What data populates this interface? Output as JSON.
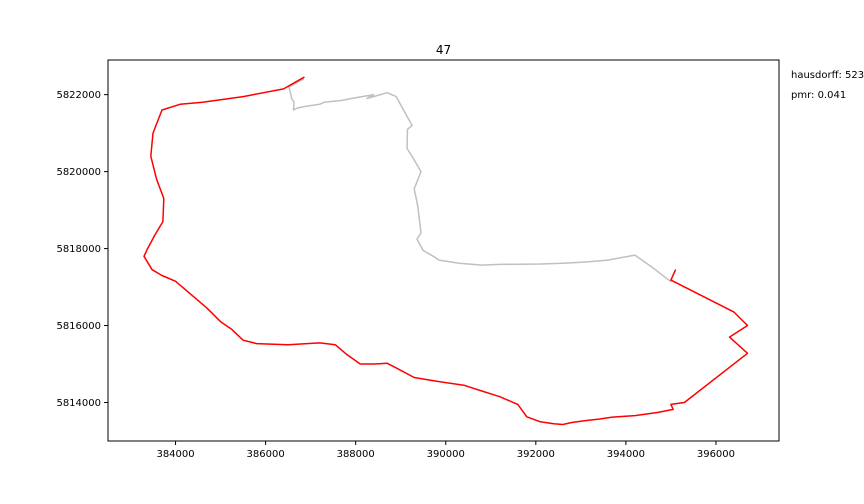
{
  "chart_data": {
    "type": "line",
    "title": "47",
    "xlabel": "",
    "ylabel": "",
    "xlim": [
      382500,
      397400
    ],
    "ylim": [
      5813000,
      5822900
    ],
    "x_ticks": [
      384000,
      386000,
      388000,
      390000,
      392000,
      394000,
      396000
    ],
    "y_ticks": [
      5814000,
      5816000,
      5818000,
      5820000,
      5822000
    ],
    "x_tick_labels": [
      "384000",
      "386000",
      "388000",
      "390000",
      "392000",
      "394000",
      "396000"
    ],
    "y_tick_labels": [
      "5814000",
      "5816000",
      "5818000",
      "5820000",
      "5822000"
    ],
    "grid": false,
    "legend": "none",
    "annotations": [
      "hausdorff: 523",
      "pmr: 0.041"
    ],
    "series": [
      {
        "color": "#c0c0c0",
        "x": [
          386840,
          386520,
          386580,
          386630,
          386620,
          386700,
          386900,
          387200,
          387300,
          387700,
          387900,
          388400,
          388250,
          388700,
          388900,
          389250,
          389150,
          389140,
          389250,
          389450,
          389300,
          389380,
          389450,
          389360,
          389500,
          389750,
          389850,
          390300,
          390800,
          391200,
          392100,
          392600,
          393100,
          393600,
          394200,
          394600,
          395000
        ],
        "y": [
          5822400,
          5822200,
          5821900,
          5821800,
          5821600,
          5821650,
          5821700,
          5821750,
          5821800,
          5821850,
          5821900,
          5822000,
          5821900,
          5822050,
          5821950,
          5821200,
          5821100,
          5820600,
          5820400,
          5820000,
          5819550,
          5819100,
          5818400,
          5818250,
          5817950,
          5817780,
          5817700,
          5817620,
          5817570,
          5817590,
          5817600,
          5817620,
          5817650,
          5817700,
          5817830,
          5817500,
          5817140
        ]
      },
      {
        "color": "#ff0000",
        "x": [
          386850,
          386400,
          385500,
          384600,
          384100,
          383700,
          383500,
          383450,
          383580,
          383740,
          383720,
          383540,
          383380,
          383300,
          383480,
          383700,
          384000,
          384300,
          384700,
          385000,
          385250,
          385500,
          385800,
          386500,
          387200,
          387550,
          387800,
          388100,
          388400,
          388700,
          388900,
          389300,
          389800,
          390400,
          390800,
          391200,
          391600,
          391800,
          392100,
          392400,
          392600,
          392800,
          393100,
          393400,
          393700,
          394200,
          394700,
          395050,
          395000,
          395300,
          396700,
          396300,
          396700,
          396400,
          395000,
          395100
        ],
        "y": [
          5822450,
          5822150,
          5821950,
          5821800,
          5821750,
          5821600,
          5821000,
          5820400,
          5819800,
          5819300,
          5818700,
          5818350,
          5818000,
          5817800,
          5817450,
          5817300,
          5817150,
          5816850,
          5816450,
          5816100,
          5815900,
          5815620,
          5815530,
          5815500,
          5815550,
          5815500,
          5815250,
          5815000,
          5815000,
          5815020,
          5814900,
          5814650,
          5814550,
          5814450,
          5814300,
          5814150,
          5813950,
          5813630,
          5813500,
          5813450,
          5813430,
          5813480,
          5813530,
          5813570,
          5813620,
          5813660,
          5813740,
          5813820,
          5813950,
          5814000,
          5815280,
          5815700,
          5816000,
          5816350,
          5817180,
          5817440
        ]
      }
    ]
  }
}
